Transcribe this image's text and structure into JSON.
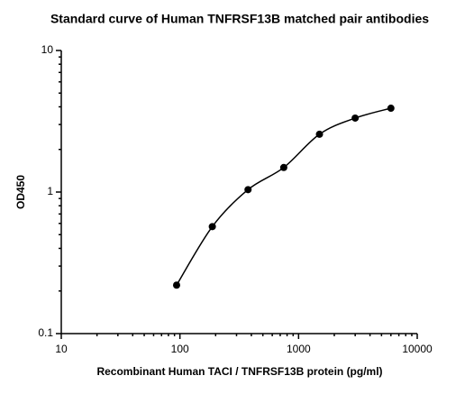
{
  "chart_data": {
    "type": "scatter",
    "title": "Standard curve of Human TNFRSF13B matched pair antibodies",
    "xlabel": "Recombinant Human TACI / TNFRSF13B protein (pg/ml)",
    "ylabel": "OD450",
    "x": [
      93.75,
      187.5,
      375,
      750,
      1500,
      3000,
      6000
    ],
    "values": [
      0.22,
      0.57,
      1.04,
      1.49,
      2.56,
      3.33,
      3.91
    ],
    "color": "#000000",
    "xscale": "log",
    "yscale": "log",
    "xlim": [
      10,
      10000
    ],
    "ylim": [
      0.1,
      10
    ],
    "xticks": [
      10,
      100,
      1000,
      10000
    ],
    "yticks": [
      0.1,
      1,
      10
    ]
  }
}
